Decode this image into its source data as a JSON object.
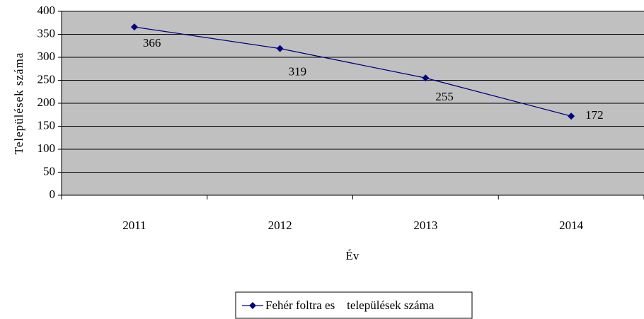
{
  "chart_data": {
    "type": "line",
    "categories": [
      "2011",
      "2012",
      "2013",
      "2014"
    ],
    "series": [
      {
        "name": "Fehér foltra es    települések száma",
        "color": "#000080",
        "values": [
          366,
          319,
          255,
          172
        ]
      }
    ],
    "ylim": [
      0,
      400
    ],
    "yticks": [
      0,
      50,
      100,
      150,
      200,
      250,
      300,
      350,
      400
    ],
    "y_label": "Települések száma",
    "x_label": "Év",
    "grid": true,
    "plot_background": "#c0c0c0",
    "legend": "bottom"
  }
}
